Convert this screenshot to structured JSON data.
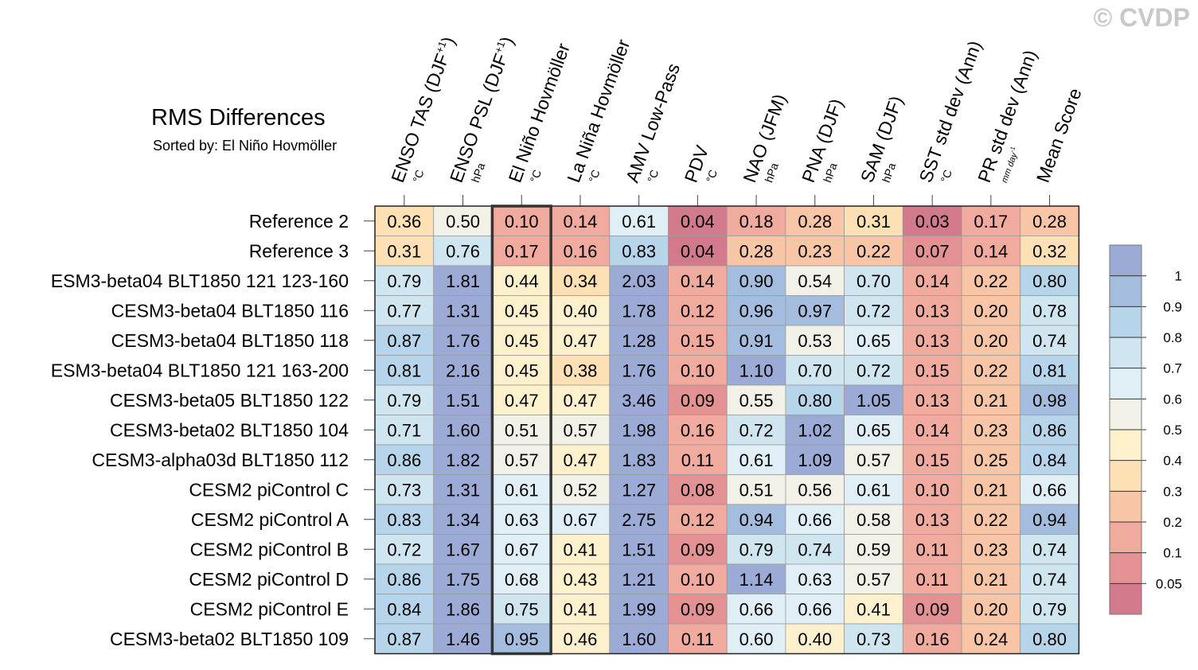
{
  "chart_data": {
    "type": "heatmap",
    "title": "RMS Differences",
    "subtitle": "Sorted by: El Niño Hovmöller",
    "watermark": "© CVDP",
    "highlighted_column": "El Niño Hovmöller",
    "columns": [
      {
        "name": "ENSO TAS (DJF+1)",
        "main": "ENSO TAS (DJF",
        "sup": "+1",
        "close": ")",
        "unit": "°C"
      },
      {
        "name": "ENSO PSL (DJF+1)",
        "main": "ENSO PSL (DJF",
        "sup": "+1",
        "close": ")",
        "unit": "hPa"
      },
      {
        "name": "El Niño Hovmöller",
        "main": "El Niño Hovmöller",
        "sup": "",
        "close": "",
        "unit": "°C"
      },
      {
        "name": "La Niña Hovmöller",
        "main": "La Niña Hovmöller",
        "sup": "",
        "close": "",
        "unit": "°C"
      },
      {
        "name": "AMV Low-Pass",
        "main": "AMV Low-Pass",
        "sup": "",
        "close": "",
        "unit": "°C"
      },
      {
        "name": "PDV",
        "main": "PDV",
        "sup": "",
        "close": "",
        "unit": "°C"
      },
      {
        "name": "NAO (JFM)",
        "main": "NAO (JFM)",
        "sup": "",
        "close": "",
        "unit": "hPa"
      },
      {
        "name": "PNA (DJF)",
        "main": "PNA (DJF)",
        "sup": "",
        "close": "",
        "unit": "hPa"
      },
      {
        "name": "SAM (DJF)",
        "main": "SAM (DJF)",
        "sup": "",
        "close": "",
        "unit": "hPa"
      },
      {
        "name": "SST std dev (Ann)",
        "main": "SST std dev (Ann)",
        "sup": "",
        "close": "",
        "unit": "°C"
      },
      {
        "name": "PR std dev (Ann)",
        "main": "PR std dev (Ann)",
        "sup": "",
        "close": "",
        "unit": "mm day-1",
        "unit_main": "mm day",
        "unit_sup": "-1"
      },
      {
        "name": "Mean Score",
        "main": "Mean Score",
        "sup": "",
        "close": "",
        "unit": ""
      }
    ],
    "rows": [
      {
        "label": "Reference 2",
        "values": [
          0.36,
          0.5,
          0.1,
          0.14,
          0.61,
          0.04,
          0.18,
          0.28,
          0.31,
          0.03,
          0.17,
          0.28
        ]
      },
      {
        "label": "Reference 3",
        "values": [
          0.31,
          0.76,
          0.17,
          0.16,
          0.83,
          0.04,
          0.28,
          0.23,
          0.22,
          0.07,
          0.14,
          0.32
        ]
      },
      {
        "label": "ESM3-beta04 BLT1850 121 123-160",
        "values": [
          0.79,
          1.81,
          0.44,
          0.34,
          2.03,
          0.14,
          0.9,
          0.54,
          0.7,
          0.14,
          0.22,
          0.8
        ]
      },
      {
        "label": "CESM3-beta04 BLT1850 116",
        "values": [
          0.77,
          1.31,
          0.45,
          0.4,
          1.78,
          0.12,
          0.96,
          0.97,
          0.72,
          0.13,
          0.2,
          0.78
        ]
      },
      {
        "label": "CESM3-beta04 BLT1850 118",
        "values": [
          0.87,
          1.76,
          0.45,
          0.47,
          1.28,
          0.15,
          0.91,
          0.53,
          0.65,
          0.13,
          0.2,
          0.74
        ]
      },
      {
        "label": "ESM3-beta04 BLT1850 121 163-200",
        "values": [
          0.81,
          2.16,
          0.45,
          0.38,
          1.76,
          0.1,
          1.1,
          0.7,
          0.72,
          0.15,
          0.22,
          0.81
        ]
      },
      {
        "label": "CESM3-beta05 BLT1850 122",
        "values": [
          0.79,
          1.51,
          0.47,
          0.47,
          3.46,
          0.09,
          0.55,
          0.8,
          1.05,
          0.13,
          0.21,
          0.98
        ]
      },
      {
        "label": "CESM3-beta02 BLT1850 104",
        "values": [
          0.71,
          1.6,
          0.51,
          0.57,
          1.98,
          0.16,
          0.72,
          1.02,
          0.65,
          0.14,
          0.23,
          0.86
        ]
      },
      {
        "label": "CESM3-alpha03d BLT1850 112",
        "values": [
          0.86,
          1.82,
          0.57,
          0.47,
          1.83,
          0.11,
          0.61,
          1.09,
          0.57,
          0.15,
          0.25,
          0.84
        ]
      },
      {
        "label": "CESM2 piControl C",
        "values": [
          0.73,
          1.31,
          0.61,
          0.52,
          1.27,
          0.08,
          0.51,
          0.56,
          0.61,
          0.1,
          0.21,
          0.66
        ]
      },
      {
        "label": "CESM2 piControl A",
        "values": [
          0.83,
          1.34,
          0.63,
          0.67,
          2.75,
          0.12,
          0.94,
          0.66,
          0.58,
          0.13,
          0.22,
          0.94
        ]
      },
      {
        "label": "CESM2 piControl B",
        "values": [
          0.72,
          1.67,
          0.67,
          0.41,
          1.51,
          0.09,
          0.79,
          0.74,
          0.59,
          0.11,
          0.23,
          0.74
        ]
      },
      {
        "label": "CESM2 piControl D",
        "values": [
          0.86,
          1.75,
          0.68,
          0.43,
          1.21,
          0.1,
          1.14,
          0.63,
          0.57,
          0.11,
          0.21,
          0.74
        ]
      },
      {
        "label": "CESM2 piControl E",
        "values": [
          0.84,
          1.86,
          0.75,
          0.41,
          1.99,
          0.09,
          0.66,
          0.66,
          0.41,
          0.09,
          0.2,
          0.79
        ]
      },
      {
        "label": "CESM3-beta02 BLT1850 109",
        "values": [
          0.87,
          1.46,
          0.95,
          0.46,
          1.6,
          0.11,
          0.6,
          0.4,
          0.73,
          0.16,
          0.24,
          0.8
        ]
      }
    ],
    "colorbar": {
      "levels": [
        0.05,
        0.1,
        0.2,
        0.3,
        0.4,
        0.5,
        0.6,
        0.7,
        0.8,
        0.9,
        1
      ],
      "labels": [
        "0.05",
        "0.1",
        "0.2",
        "0.3",
        "0.4",
        "0.5",
        "0.6",
        "0.7",
        "0.8",
        "0.9",
        "1"
      ],
      "colors": [
        "#d27a8c",
        "#e39192",
        "#f0aa9e",
        "#f8c6a6",
        "#fde0b3",
        "#fdf0cd",
        "#f1f1e8",
        "#e0eff5",
        "#cfe5f0",
        "#b6d4ea",
        "#a4bcdd",
        "#9cabd6"
      ]
    }
  }
}
